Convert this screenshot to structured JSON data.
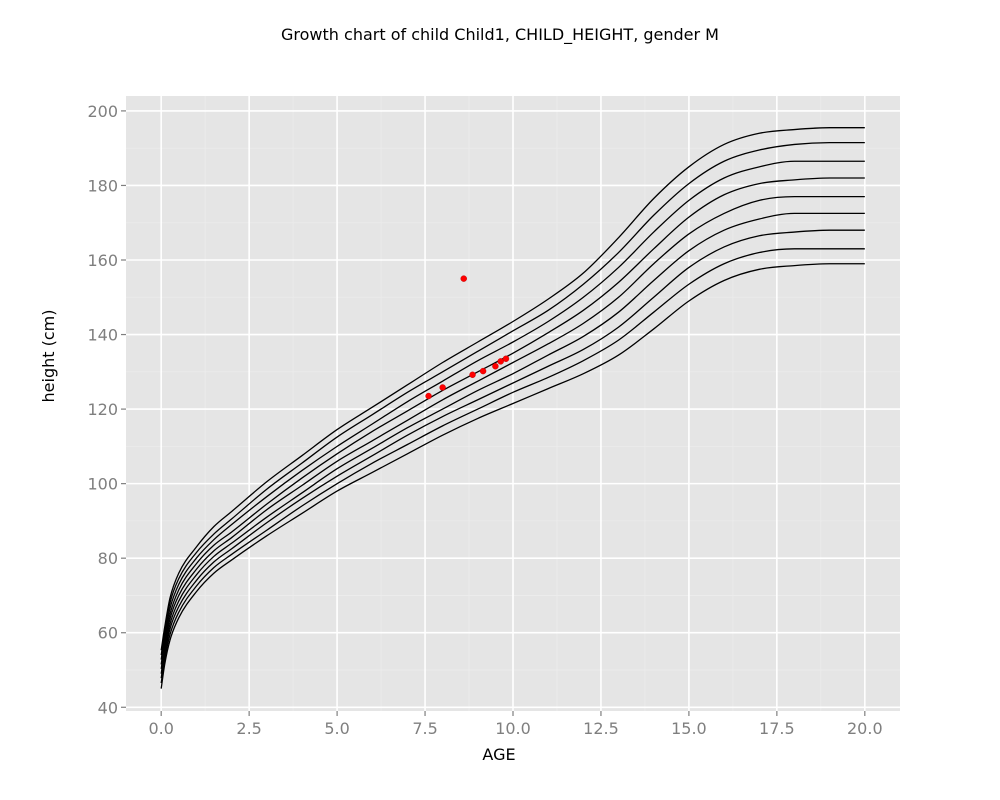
{
  "chart_data": {
    "type": "line",
    "title": "Growth chart of child Child1, CHILD_HEIGHT, gender M",
    "xlabel": "AGE",
    "ylabel": "height (cm)",
    "xlim": [
      -1.0,
      21.0
    ],
    "ylim": [
      39.0,
      204.0
    ],
    "xticks": [
      0.0,
      2.5,
      5.0,
      7.5,
      10.0,
      12.5,
      15.0,
      17.5,
      20.0
    ],
    "xtick_labels": [
      "0.0",
      "2.5",
      "5.0",
      "7.5",
      "10.0",
      "12.5",
      "15.0",
      "17.5",
      "20.0"
    ],
    "yticks": [
      40,
      60,
      80,
      100,
      120,
      140,
      160,
      180,
      200
    ],
    "ytick_labels": [
      "40",
      "60",
      "80",
      "100",
      "120",
      "140",
      "160",
      "180",
      "200"
    ],
    "grid": true,
    "background": "#e5e5e5",
    "line_color": "#000000",
    "point_color": "#ff0000",
    "reference_ages": [
      0,
      0.1,
      0.25,
      0.5,
      1,
      1.5,
      2,
      3,
      4,
      5,
      6,
      7,
      8,
      9,
      10,
      11,
      12,
      13,
      14,
      15,
      16,
      17,
      18,
      19,
      20
    ],
    "series": [
      {
        "values": [
          45.0,
          51.5,
          58.0,
          64.0,
          71.0,
          76.0,
          79.5,
          86.0,
          92.0,
          98.0,
          103.0,
          108.0,
          113.0,
          117.5,
          121.5,
          125.5,
          129.5,
          134.5,
          141.5,
          149.0,
          154.5,
          157.5,
          158.5,
          159.0,
          159.0
        ]
      },
      {
        "values": [
          46.5,
          52.8,
          59.5,
          65.5,
          72.5,
          77.5,
          81.0,
          87.5,
          94.0,
          100.0,
          105.5,
          110.5,
          115.5,
          120.0,
          124.5,
          128.5,
          133.0,
          138.5,
          146.0,
          153.5,
          159.0,
          162.0,
          163.0,
          163.0,
          163.0
        ]
      },
      {
        "values": [
          47.8,
          54.0,
          61.0,
          67.0,
          74.0,
          79.0,
          82.5,
          89.5,
          96.0,
          102.0,
          107.5,
          113.0,
          118.0,
          122.5,
          127.0,
          131.5,
          136.0,
          142.0,
          150.0,
          158.0,
          163.5,
          166.5,
          167.5,
          168.0,
          168.0
        ]
      },
      {
        "values": [
          49.0,
          55.2,
          62.3,
          68.5,
          75.5,
          80.5,
          84.0,
          91.0,
          97.5,
          104.0,
          109.5,
          115.0,
          120.0,
          125.0,
          129.5,
          134.5,
          139.5,
          146.0,
          154.5,
          162.5,
          168.0,
          171.0,
          172.5,
          172.5,
          172.5
        ]
      },
      {
        "values": [
          50.3,
          56.5,
          63.7,
          70.0,
          77.0,
          82.0,
          85.5,
          93.0,
          99.5,
          106.0,
          111.5,
          117.0,
          122.5,
          127.5,
          132.5,
          137.5,
          143.0,
          150.0,
          159.0,
          167.0,
          172.5,
          176.0,
          177.0,
          177.0,
          177.0
        ]
      },
      {
        "values": [
          51.5,
          57.8,
          65.0,
          71.5,
          78.5,
          83.5,
          87.0,
          94.5,
          101.5,
          108.0,
          114.0,
          119.5,
          125.0,
          130.0,
          135.0,
          140.5,
          146.5,
          154.0,
          163.0,
          171.5,
          177.5,
          180.5,
          181.5,
          182.0,
          182.0
        ]
      },
      {
        "values": [
          52.8,
          59.0,
          66.5,
          73.0,
          80.0,
          85.0,
          89.0,
          96.5,
          103.5,
          110.0,
          116.0,
          122.0,
          127.5,
          133.0,
          138.0,
          143.5,
          150.0,
          158.0,
          167.5,
          176.0,
          182.0,
          185.0,
          186.5,
          186.5,
          186.5
        ]
      },
      {
        "values": [
          54.0,
          60.3,
          68.0,
          74.5,
          81.5,
          86.5,
          90.5,
          98.5,
          105.5,
          112.5,
          118.5,
          124.5,
          130.0,
          135.5,
          141.0,
          146.5,
          153.5,
          162.0,
          172.0,
          180.5,
          186.5,
          189.5,
          191.0,
          191.5,
          191.5
        ]
      },
      {
        "values": [
          55.3,
          61.5,
          69.3,
          76.0,
          83.0,
          88.5,
          92.5,
          100.5,
          107.5,
          114.5,
          120.5,
          126.5,
          132.5,
          138.0,
          143.5,
          149.5,
          156.5,
          166.0,
          176.5,
          185.0,
          191.0,
          194.0,
          195.0,
          195.5,
          195.5
        ]
      }
    ],
    "points": {
      "x": [
        7.6,
        8.0,
        8.6,
        8.85,
        9.15,
        9.5,
        9.65,
        9.8
      ],
      "y": [
        123.5,
        125.8,
        155.0,
        129.2,
        130.2,
        131.5,
        132.8,
        133.5
      ]
    }
  }
}
